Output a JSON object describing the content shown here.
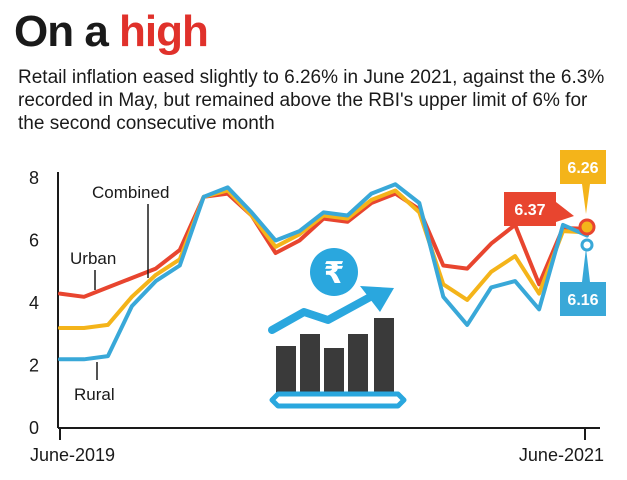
{
  "headline": {
    "part1": "On a ",
    "part2": "high"
  },
  "subtitle": "Retail inflation eased slightly to 6.26% in June 2021, against the 6.3% recorded in May, but remained above the RBI's upper limit of 6% for the second consecutive month",
  "colors": {
    "urban": "#e8452f",
    "combined": "#f4b41a",
    "rural": "#39a8d8",
    "headline_accent": "#e0312b",
    "icon_bars": "#3a3a3a",
    "icon_accent": "#2aa7de"
  },
  "chart_data": {
    "type": "line",
    "x_start_label": "June-2019",
    "x_end_label": "June-2021",
    "ylim": [
      0,
      8
    ],
    "yticks": [
      0,
      2,
      4,
      6,
      8
    ],
    "grid": false,
    "series": [
      {
        "name": "Urban",
        "color": "#e8452f",
        "values": [
          4.3,
          4.2,
          4.5,
          4.8,
          5.1,
          5.7,
          7.4,
          7.5,
          6.8,
          5.6,
          6.0,
          6.7,
          6.6,
          7.2,
          7.5,
          7.0,
          5.2,
          5.1,
          5.9,
          6.5,
          4.6,
          6.4,
          6.37
        ]
      },
      {
        "name": "Combined",
        "color": "#f4b41a",
        "values": [
          3.2,
          3.2,
          3.3,
          4.2,
          4.9,
          5.4,
          7.4,
          7.6,
          6.8,
          5.8,
          6.2,
          6.8,
          6.7,
          7.3,
          7.6,
          6.9,
          4.6,
          4.1,
          5.0,
          5.5,
          4.3,
          6.3,
          6.26
        ]
      },
      {
        "name": "Rural",
        "color": "#39a8d8",
        "values": [
          2.2,
          2.2,
          2.3,
          3.9,
          4.7,
          5.2,
          7.4,
          7.7,
          6.9,
          6.0,
          6.3,
          6.9,
          6.8,
          7.5,
          7.8,
          7.2,
          4.2,
          3.3,
          4.5,
          4.7,
          3.8,
          6.5,
          6.16
        ]
      }
    ],
    "end_labels": [
      {
        "series": "Urban",
        "text": "6.37"
      },
      {
        "series": "Combined",
        "text": "6.26"
      },
      {
        "series": "Rural",
        "text": "6.16"
      }
    ],
    "annotations": [
      "Combined",
      "Urban",
      "Rural"
    ]
  }
}
